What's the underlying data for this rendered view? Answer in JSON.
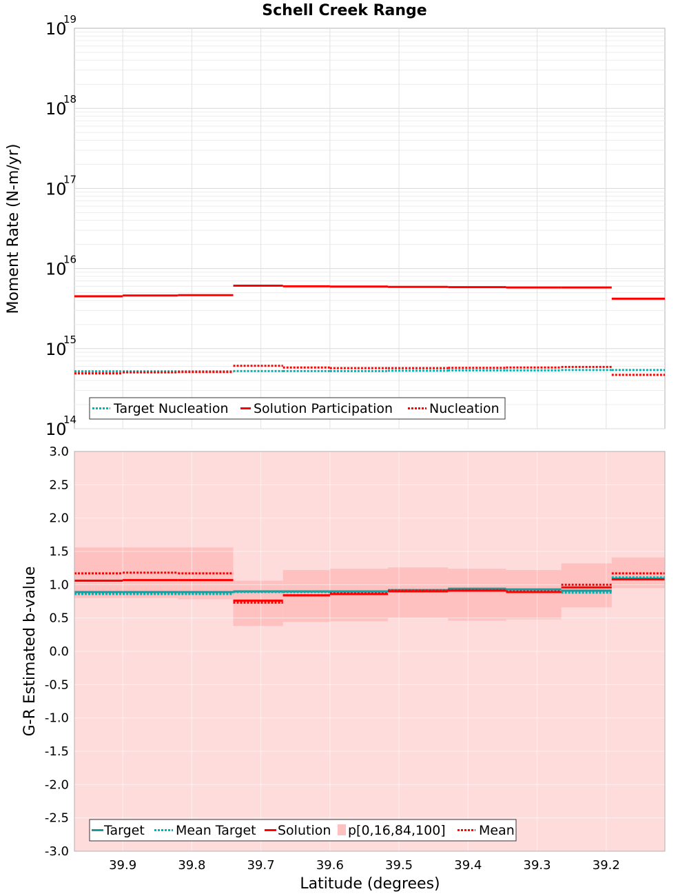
{
  "chart_data": {
    "title": "Schell Creek Range",
    "xlabel": "Latitude (degrees)",
    "x_direction": "decreasing",
    "xlim": [
      39.97,
      39.115
    ],
    "xticks": [
      39.9,
      39.8,
      39.7,
      39.6,
      39.5,
      39.4,
      39.3,
      39.2
    ],
    "xtick_labels": [
      "39.9",
      "39.8",
      "39.7",
      "39.6",
      "39.5",
      "39.4",
      "39.3",
      "39.2"
    ],
    "panels": [
      {
        "name": "moment-rate",
        "type": "line",
        "scale": "log",
        "ylabel": "Moment Rate (N-m/yr)",
        "ylim": [
          100000000000000.0,
          1e+19
        ],
        "yticks": [
          {
            "base": "10",
            "exp": "14"
          },
          {
            "base": "10",
            "exp": "15"
          },
          {
            "base": "10",
            "exp": "16"
          },
          {
            "base": "10",
            "exp": "17"
          },
          {
            "base": "10",
            "exp": "18"
          },
          {
            "base": "10",
            "exp": "19"
          }
        ],
        "legend": [
          "Target Nucleation",
          "Solution Participation",
          "Nucleation"
        ],
        "series": [
          {
            "name": "Target Nucleation",
            "color": "#00b2b2",
            "dash": "3,2",
            "segments": [
              [
                39.97,
                39.9,
                520000000000000.0
              ],
              [
                39.9,
                39.82,
                520000000000000.0
              ],
              [
                39.82,
                39.74,
                520000000000000.0
              ],
              [
                39.74,
                39.668,
                525000000000000.0
              ],
              [
                39.668,
                39.6,
                525000000000000.0
              ],
              [
                39.6,
                39.516,
                525000000000000.0
              ],
              [
                39.516,
                39.429,
                530000000000000.0
              ],
              [
                39.429,
                39.345,
                535000000000000.0
              ],
              [
                39.345,
                39.265,
                535000000000000.0
              ],
              [
                39.265,
                39.192,
                540000000000000.0
              ],
              [
                39.192,
                39.115,
                540000000000000.0
              ]
            ]
          },
          {
            "name": "Solution Participation",
            "color": "#ff0000",
            "dash": "",
            "segments": [
              [
                39.97,
                39.9,
                4500000000000000.0
              ],
              [
                39.9,
                39.82,
                4600000000000000.0
              ],
              [
                39.82,
                39.74,
                4650000000000000.0
              ],
              [
                39.74,
                39.668,
                6100000000000000.0
              ],
              [
                39.668,
                39.6,
                6000000000000000.0
              ],
              [
                39.6,
                39.516,
                5950000000000000.0
              ],
              [
                39.516,
                39.429,
                5900000000000000.0
              ],
              [
                39.429,
                39.345,
                5850000000000000.0
              ],
              [
                39.345,
                39.265,
                5800000000000000.0
              ],
              [
                39.265,
                39.192,
                5800000000000000.0
              ],
              [
                39.192,
                39.115,
                4200000000000000.0
              ]
            ]
          },
          {
            "name": "Nucleation",
            "color": "#ff0000",
            "dash": "3,2",
            "segments": [
              [
                39.97,
                39.9,
                490000000000000.0
              ],
              [
                39.9,
                39.82,
                505000000000000.0
              ],
              [
                39.82,
                39.74,
                510000000000000.0
              ],
              [
                39.74,
                39.668,
                610000000000000.0
              ],
              [
                39.668,
                39.6,
                580000000000000.0
              ],
              [
                39.6,
                39.516,
                570000000000000.0
              ],
              [
                39.516,
                39.429,
                570000000000000.0
              ],
              [
                39.429,
                39.345,
                575000000000000.0
              ],
              [
                39.345,
                39.265,
                580000000000000.0
              ],
              [
                39.265,
                39.192,
                590000000000000.0
              ],
              [
                39.192,
                39.115,
                470000000000000.0
              ]
            ]
          }
        ]
      },
      {
        "name": "b-value",
        "type": "line",
        "scale": "linear",
        "ylabel": "G-R Estimated b-value",
        "ylim": [
          -3.0,
          3.0
        ],
        "yticks": [
          "-3.0",
          "-2.5",
          "-2.0",
          "-1.5",
          "-1.0",
          "-0.5",
          "0.0",
          "0.5",
          "1.0",
          "1.5",
          "2.0",
          "2.5",
          "3.0"
        ],
        "legend": [
          "Target",
          "Mean Target",
          "Solution",
          "p[0,16,84,100]",
          "Mean"
        ],
        "band_outer": [
          -3.0,
          3.0
        ],
        "band_color": "#ffdcdc",
        "band_inner_color": "#ffc0c0",
        "bands_inner": [
          [
            39.97,
            39.9,
            0.8,
            1.56
          ],
          [
            39.9,
            39.82,
            0.8,
            1.56
          ],
          [
            39.82,
            39.74,
            0.78,
            1.56
          ],
          [
            39.74,
            39.668,
            0.38,
            1.06
          ],
          [
            39.668,
            39.6,
            0.44,
            1.22
          ],
          [
            39.6,
            39.516,
            0.45,
            1.24
          ],
          [
            39.516,
            39.429,
            0.5,
            1.26
          ],
          [
            39.429,
            39.345,
            0.46,
            1.24
          ],
          [
            39.345,
            39.265,
            0.48,
            1.22
          ],
          [
            39.265,
            39.192,
            0.66,
            1.32
          ],
          [
            39.192,
            39.115,
            0.95,
            1.41
          ]
        ],
        "series": [
          {
            "name": "Target",
            "color": "#1a9a9a",
            "dash": "",
            "segments": [
              [
                39.97,
                39.9,
                0.89
              ],
              [
                39.9,
                39.82,
                0.89
              ],
              [
                39.82,
                39.74,
                0.89
              ],
              [
                39.74,
                39.668,
                0.9
              ],
              [
                39.668,
                39.6,
                0.9
              ],
              [
                39.6,
                39.516,
                0.9
              ],
              [
                39.516,
                39.429,
                0.92
              ],
              [
                39.429,
                39.345,
                0.94
              ],
              [
                39.345,
                39.265,
                0.93
              ],
              [
                39.265,
                39.192,
                0.91
              ],
              [
                39.192,
                39.115,
                1.09
              ]
            ]
          },
          {
            "name": "Mean Target",
            "color": "#00b2b2",
            "dash": "3,2",
            "segments": [
              [
                39.97,
                39.9,
                0.86
              ],
              [
                39.9,
                39.82,
                0.86
              ],
              [
                39.82,
                39.74,
                0.86
              ],
              [
                39.74,
                39.668,
                0.89
              ],
              [
                39.668,
                39.6,
                0.89
              ],
              [
                39.6,
                39.516,
                0.89
              ],
              [
                39.516,
                39.429,
                0.91
              ],
              [
                39.429,
                39.345,
                0.93
              ],
              [
                39.345,
                39.265,
                0.91
              ],
              [
                39.265,
                39.192,
                0.88
              ],
              [
                39.192,
                39.115,
                1.11
              ]
            ]
          },
          {
            "name": "Solution",
            "color": "#ff0000",
            "dash": "",
            "segments": [
              [
                39.97,
                39.9,
                1.06
              ],
              [
                39.9,
                39.82,
                1.07
              ],
              [
                39.82,
                39.74,
                1.07
              ],
              [
                39.74,
                39.668,
                0.76
              ],
              [
                39.668,
                39.6,
                0.84
              ],
              [
                39.6,
                39.516,
                0.86
              ],
              [
                39.516,
                39.429,
                0.9
              ],
              [
                39.429,
                39.345,
                0.91
              ],
              [
                39.345,
                39.265,
                0.89
              ],
              [
                39.265,
                39.192,
                0.96
              ],
              [
                39.192,
                39.115,
                1.08
              ]
            ]
          },
          {
            "name": "Mean",
            "color": "#ff0000",
            "dash": "3,2",
            "segments": [
              [
                39.97,
                39.9,
                1.17
              ],
              [
                39.9,
                39.82,
                1.18
              ],
              [
                39.82,
                39.74,
                1.17
              ],
              [
                39.74,
                39.668,
                0.73
              ],
              [
                39.668,
                39.6,
                0.84
              ],
              [
                39.6,
                39.516,
                0.87
              ],
              [
                39.516,
                39.429,
                0.91
              ],
              [
                39.429,
                39.345,
                0.92
              ],
              [
                39.345,
                39.265,
                0.9
              ],
              [
                39.265,
                39.192,
                1.0
              ],
              [
                39.192,
                39.115,
                1.17
              ]
            ]
          }
        ]
      }
    ]
  }
}
